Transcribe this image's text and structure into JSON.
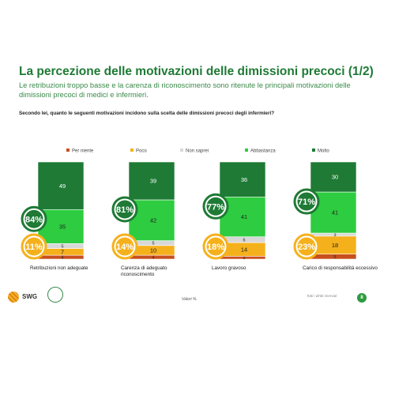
{
  "title": "La percezione delle motivazioni delle dimissioni precoci (1/2)",
  "subtitle": "Le retribuzioni troppo basse e la carenza di riconoscimento sono ritenute le principali motivazioni delle dimissioni precoci di medici e infermieri.",
  "question": "Secondo lei, quanto le seguenti motivazioni incidono sulla scelta delle dimissioni precoci degli infermieri?",
  "footer_note": "Valori %.",
  "rights_text": "Tutti i diritti riservati",
  "page_number": "8",
  "logo_text": "SWG",
  "chart_data": {
    "type": "bar",
    "stacked": true,
    "categories": [
      "Retribuzioni non adeguate",
      "Carenza di adeguato riconoscimento",
      "Lavoro gravoso",
      "Carico di responsabilità eccessivo"
    ],
    "category_lines": [
      [
        "Retribuzioni non adeguate"
      ],
      [
        "Carenza di adeguato",
        "riconoscimento"
      ],
      [
        "Lavoro gravoso"
      ],
      [
        "Carico di responsabilità eccessivo"
      ]
    ],
    "series": [
      {
        "name": "Per niente",
        "color": "#c8501e",
        "values": [
          4,
          4,
          3,
          5
        ]
      },
      {
        "name": "Poco",
        "color": "#f5b11c",
        "values": [
          7,
          10,
          14,
          18
        ]
      },
      {
        "name": "Non saprei",
        "color": "#d8d8d8",
        "values": [
          5,
          5,
          6,
          3
        ]
      },
      {
        "name": "Abbastanza",
        "color": "#2ecc40",
        "values": [
          35,
          42,
          41,
          41
        ]
      },
      {
        "name": "Molto",
        "color": "#1e7a35",
        "values": [
          49,
          39,
          36,
          30
        ]
      }
    ],
    "positive_totals": [
      "84%",
      "81%",
      "77%",
      "71%"
    ],
    "negative_totals": [
      "11%",
      "14%",
      "18%",
      "23%"
    ],
    "legend_position": "top"
  }
}
